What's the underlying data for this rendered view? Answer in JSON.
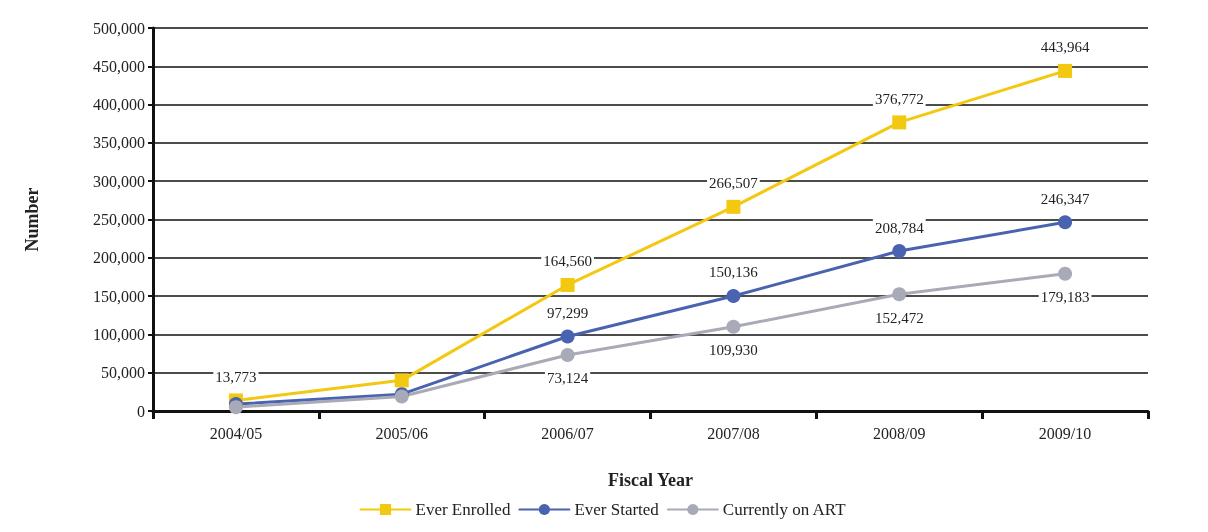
{
  "chart_data": {
    "type": "line",
    "xlabel": "Fiscal Year",
    "ylabel": "Number",
    "categories": [
      "2004/05",
      "2005/06",
      "2006/07",
      "2007/08",
      "2008/09",
      "2009/10"
    ],
    "ylim": [
      0,
      500000
    ],
    "yticks": [
      0,
      {
        "value": 50000,
        "label": "50,000"
      },
      {
        "value": 100000,
        "label": "100,000"
      },
      {
        "value": 150000,
        "label": "150,000"
      },
      {
        "value": 200000,
        "label": "200,000"
      },
      {
        "value": 250000,
        "label": "250,000"
      },
      {
        "value": 300000,
        "label": "300,000"
      },
      {
        "value": 350000,
        "label": "350,000"
      },
      {
        "value": 400000,
        "label": "400,000"
      },
      {
        "value": 450000,
        "label": "450,000"
      },
      {
        "value": 500000,
        "label": "500,000"
      }
    ],
    "grid": "y",
    "legend": "bottom",
    "line_style": "solid",
    "series": [
      {
        "name": "Ever Enrolled",
        "color": "#f2c811",
        "marker": "square",
        "values": [
          13773,
          40000,
          164560,
          266507,
          376772,
          443964
        ],
        "value_labels": [
          "13,773",
          null,
          "164,560",
          "266,507",
          "376,772",
          "443,964"
        ]
      },
      {
        "name": "Ever Started",
        "color": "#4a63b0",
        "marker": "circle",
        "values": [
          9000,
          22000,
          97299,
          150136,
          208784,
          246347
        ],
        "value_labels": [
          null,
          null,
          "97,299",
          "150,136",
          "208,784",
          "246,347"
        ]
      },
      {
        "name": "Currently on ART",
        "color": "#a9aab8",
        "marker": "circle",
        "values": [
          5000,
          19000,
          73124,
          109930,
          152472,
          179183
        ],
        "value_labels": [
          null,
          null,
          "73,124",
          "109,930",
          "152,472",
          "179,183"
        ]
      }
    ]
  }
}
